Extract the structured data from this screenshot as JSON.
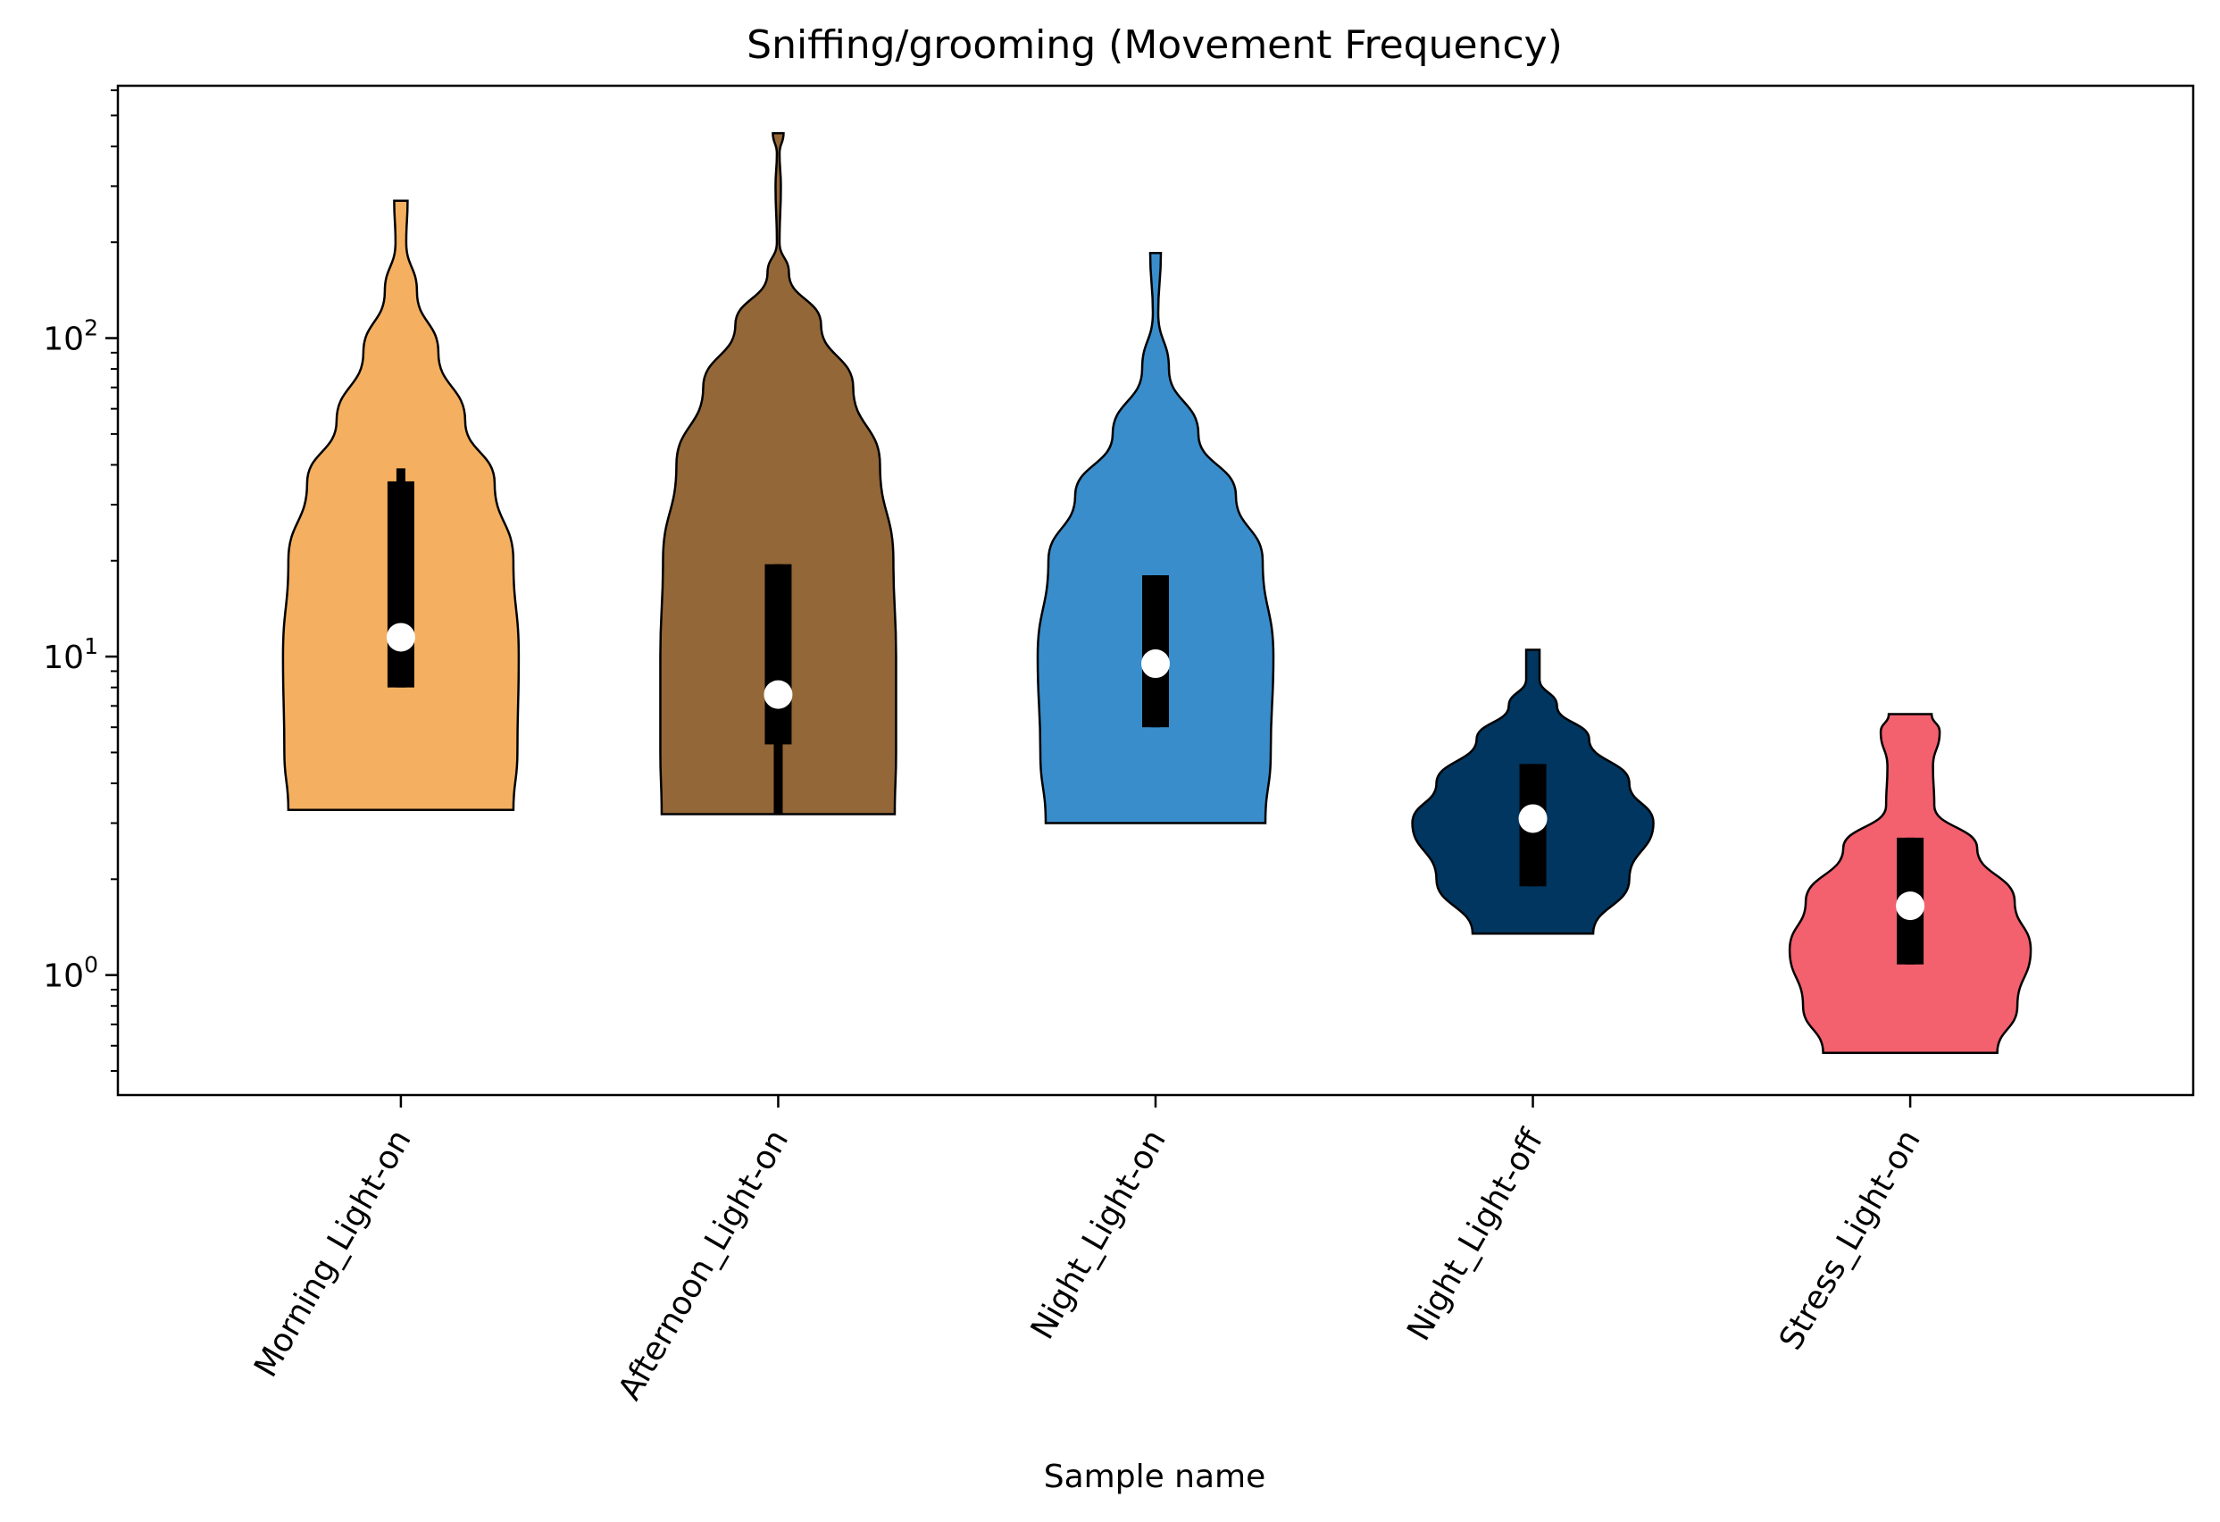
{
  "chart_data": {
    "type": "violin",
    "title": "Sniffing/grooming (Movement Frequency)",
    "xlabel": "Sample name",
    "ylabel": "",
    "yscale": "log",
    "ylim": [
      0.42,
      620
    ],
    "yticks": [
      {
        "value": 1,
        "base": "10",
        "exp": "0"
      },
      {
        "value": 10,
        "base": "10",
        "exp": "1"
      },
      {
        "value": 100,
        "base": "10",
        "exp": "2"
      }
    ],
    "grid": false,
    "legend": "none",
    "categories": [
      "Morning_Light-on",
      "Afternoon_Light-on",
      "Night_Light-on",
      "Night_Light-off",
      "Stress_Light-on"
    ],
    "colors": [
      "#F4B060",
      "#936737",
      "#3A8DCB",
      "#003660",
      "#F3606E"
    ],
    "series": [
      {
        "category": "Morning_Light-on",
        "min": 3.3,
        "max": 270,
        "median": 11.5,
        "q1": 8.0,
        "q3": 35.5,
        "whisker_low": 8.0,
        "whisker_high": 39,
        "profile": [
          [
            3.3,
            0.84
          ],
          [
            5,
            0.87
          ],
          [
            10,
            0.88
          ],
          [
            20,
            0.84
          ],
          [
            35,
            0.7
          ],
          [
            55,
            0.48
          ],
          [
            90,
            0.28
          ],
          [
            140,
            0.12
          ],
          [
            200,
            0.04
          ],
          [
            270,
            0.05
          ]
        ]
      },
      {
        "category": "Afternoon_Light-on",
        "min": 3.2,
        "max": 440,
        "median": 7.6,
        "q1": 5.3,
        "q3": 19.5,
        "whisker_low": 3.2,
        "whisker_high": 19.5,
        "profile": [
          [
            3.2,
            0.87
          ],
          [
            5,
            0.88
          ],
          [
            10,
            0.88
          ],
          [
            20,
            0.86
          ],
          [
            40,
            0.76
          ],
          [
            70,
            0.56
          ],
          [
            110,
            0.32
          ],
          [
            160,
            0.08
          ],
          [
            200,
            0.01
          ],
          [
            300,
            0.02
          ],
          [
            380,
            0.01
          ],
          [
            440,
            0.04
          ]
        ]
      },
      {
        "category": "Night_Light-on",
        "min": 3.0,
        "max": 185,
        "median": 9.5,
        "q1": 6.0,
        "q3": 18.0,
        "whisker_low": 6.0,
        "whisker_high": 18.0,
        "profile": [
          [
            3.0,
            0.82
          ],
          [
            5,
            0.86
          ],
          [
            10,
            0.88
          ],
          [
            20,
            0.8
          ],
          [
            32,
            0.6
          ],
          [
            50,
            0.32
          ],
          [
            80,
            0.1
          ],
          [
            120,
            0.02
          ],
          [
            185,
            0.04
          ]
        ]
      },
      {
        "category": "Night_Light-off",
        "min": 1.35,
        "max": 10.5,
        "median": 3.1,
        "q1": 1.9,
        "q3": 4.6,
        "whisker_low": 1.9,
        "whisker_high": 4.6,
        "profile": [
          [
            1.35,
            0.45
          ],
          [
            2,
            0.72
          ],
          [
            3,
            0.9
          ],
          [
            4,
            0.72
          ],
          [
            5.5,
            0.42
          ],
          [
            7,
            0.18
          ],
          [
            8.5,
            0.05
          ],
          [
            10.5,
            0.05
          ]
        ]
      },
      {
        "category": "Stress_Light-on",
        "min": 0.57,
        "max": 6.6,
        "median": 1.65,
        "q1": 1.08,
        "q3": 2.7,
        "whisker_low": 1.08,
        "whisker_high": 2.7,
        "profile": [
          [
            0.57,
            0.65
          ],
          [
            0.8,
            0.8
          ],
          [
            1.2,
            0.9
          ],
          [
            1.7,
            0.78
          ],
          [
            2.5,
            0.5
          ],
          [
            3.4,
            0.18
          ],
          [
            4.5,
            0.17
          ],
          [
            5.8,
            0.22
          ],
          [
            6.6,
            0.16
          ]
        ]
      }
    ]
  }
}
